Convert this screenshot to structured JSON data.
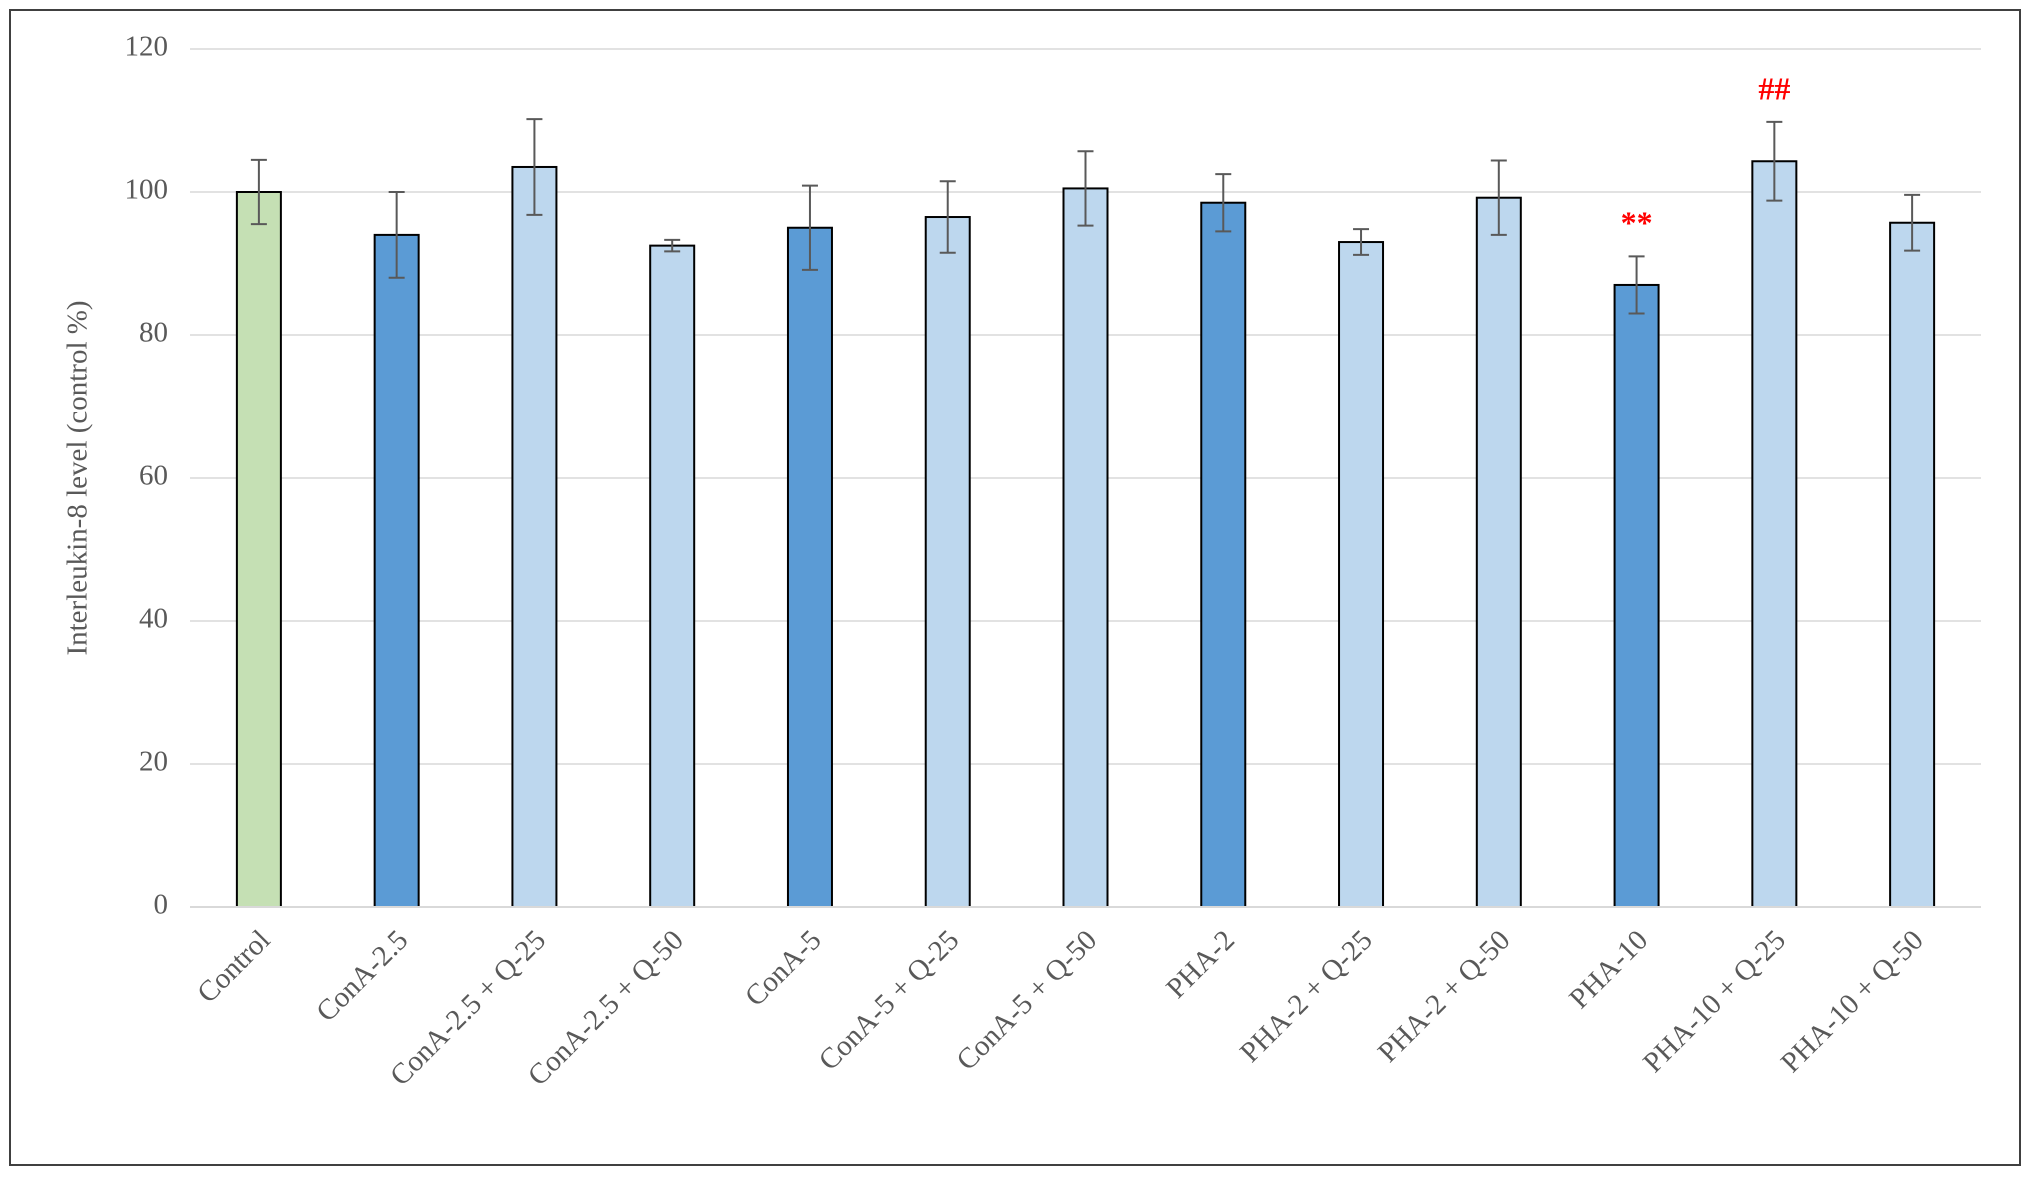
{
  "chart_data": {
    "type": "bar",
    "y_label": "Interleukin-8 level (control %)",
    "categories": [
      "Control",
      "ConA-2.5",
      "ConA-2.5 + Q-25",
      "ConA-2.5 + Q-50",
      "ConA-5",
      "ConA-5 + Q-25",
      "ConA-5 + Q-50",
      "PHA-2",
      "PHA-2 + Q-25",
      "PHA-2 + Q-50",
      "PHA-10",
      "PHA-10 + Q-25",
      "PHA-10 + Q-50"
    ],
    "values": [
      100,
      94,
      103.5,
      92.5,
      95,
      96.5,
      100.5,
      98.5,
      93,
      99.2,
      87,
      104.3,
      95.7
    ],
    "errors": [
      4.5,
      6,
      6.7,
      0.8,
      5.9,
      5,
      5.2,
      4,
      1.8,
      5.2,
      4,
      5.5,
      3.9
    ],
    "colors": [
      "#c5e0b4",
      "#5b9bd5",
      "#bdd7ee",
      "#bdd7ee",
      "#5b9bd5",
      "#bdd7ee",
      "#bdd7ee",
      "#5b9bd5",
      "#bdd7ee",
      "#bdd7ee",
      "#5b9bd5",
      "#bdd7ee",
      "#bdd7ee"
    ],
    "annotations": [
      null,
      null,
      null,
      null,
      null,
      null,
      null,
      null,
      null,
      null,
      "**",
      "##",
      null
    ],
    "annotation_color": "#ff0000",
    "ylim": [
      0,
      120
    ],
    "yticks": [
      0,
      20,
      40,
      60,
      80,
      100,
      120
    ],
    "grid": true
  }
}
